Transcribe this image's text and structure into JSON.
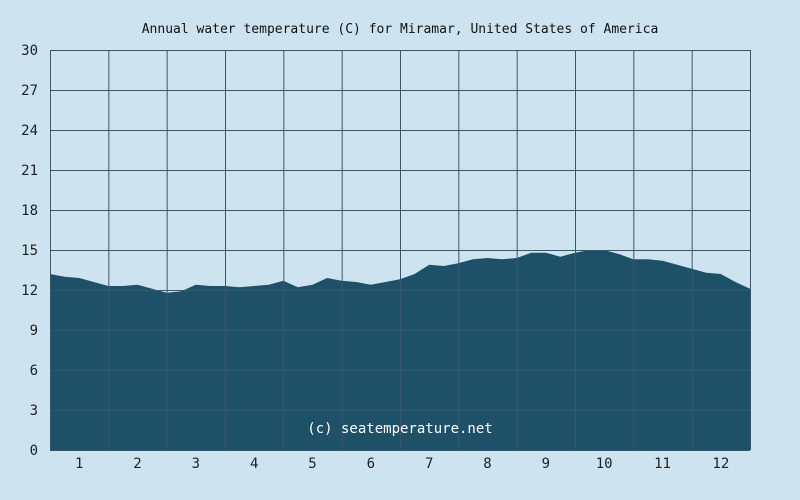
{
  "chart_data": {
    "type": "area",
    "title": "Annual water temperature (C) for Miramar, United States of America",
    "xlabel": "",
    "ylabel": "",
    "ylim": [
      0,
      30
    ],
    "yticks": [
      0,
      3,
      6,
      9,
      12,
      15,
      18,
      21,
      24,
      27,
      30
    ],
    "x_categories": [
      "1",
      "2",
      "3",
      "4",
      "5",
      "6",
      "7",
      "8",
      "9",
      "10",
      "11",
      "12"
    ],
    "grid": true,
    "series": [
      {
        "x": [
          0,
          0.25,
          0.5,
          0.75,
          1,
          1.25,
          1.5,
          1.75,
          2,
          2.25,
          2.5,
          2.75,
          3,
          3.25,
          3.5,
          3.75,
          4,
          4.25,
          4.5,
          4.75,
          5,
          5.25,
          5.5,
          5.75,
          6,
          6.25,
          6.5,
          6.75,
          7,
          7.25,
          7.5,
          7.75,
          8,
          8.25,
          8.5,
          8.75,
          9,
          9.25,
          9.5,
          9.75,
          10,
          10.25,
          10.5,
          10.75,
          11,
          11.25,
          11.5,
          11.75,
          12
        ],
        "values": [
          13.2,
          13.0,
          12.9,
          12.6,
          12.3,
          12.3,
          12.4,
          12.1,
          11.8,
          11.9,
          12.4,
          12.3,
          12.3,
          12.2,
          12.3,
          12.4,
          12.7,
          12.2,
          12.4,
          12.9,
          12.7,
          12.6,
          12.4,
          12.6,
          12.8,
          13.2,
          13.9,
          13.8,
          14.0,
          14.3,
          14.4,
          14.3,
          14.4,
          14.8,
          14.8,
          14.5,
          14.8,
          15.0,
          15.0,
          14.7,
          14.3,
          14.3,
          14.2,
          13.9,
          13.6,
          13.3,
          13.2,
          12.6,
          12.1
        ]
      }
    ],
    "annotations": [
      "(c) seatemperature.net"
    ],
    "colors": {
      "fill": "#1e5068",
      "background": "#cde3ef",
      "grid": "#3b566b"
    }
  }
}
